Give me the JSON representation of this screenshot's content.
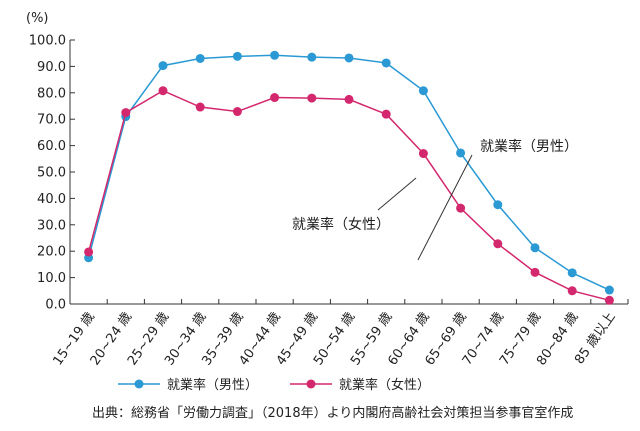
{
  "chart_data": {
    "type": "line",
    "unit_label": "(%)",
    "categories": [
      "15~19 歳",
      "20~24 歳",
      "25~29 歳",
      "30~34 歳",
      "35~39 歳",
      "40~44 歳",
      "45~49 歳",
      "50~54 歳",
      "55~59 歳",
      "60~64 歳",
      "65~69 歳",
      "70~74 歳",
      "75~79 歳",
      "80~84 歳",
      "85 歳以上"
    ],
    "y_ticks": [
      "0.0",
      "10.0",
      "20.0",
      "30.0",
      "40.0",
      "50.0",
      "60.0",
      "70.0",
      "80.0",
      "90.0",
      "100.0"
    ],
    "ylim": [
      0,
      100
    ],
    "grid": false,
    "series": [
      {
        "name": "就業率（男性）",
        "color": "#2b9ad4",
        "values": [
          17.5,
          71.0,
          90.3,
          93.0,
          93.8,
          94.2,
          93.5,
          93.2,
          91.3,
          80.8,
          57.2,
          37.6,
          21.3,
          11.8,
          5.3
        ]
      },
      {
        "name": "就業率（女性）",
        "color": "#d4286e",
        "values": [
          19.7,
          72.5,
          80.8,
          74.6,
          72.9,
          78.2,
          78.0,
          77.5,
          71.9,
          57.0,
          36.3,
          22.8,
          12.0,
          5.0,
          1.4
        ]
      }
    ],
    "annotations": [
      "就業率（男性）",
      "就業率（女性）"
    ],
    "legend_position": "bottom"
  },
  "source_note": "出典：総務省「労働力調査」（2018年）より内閣府高齢社会対策担当参事官室作成"
}
